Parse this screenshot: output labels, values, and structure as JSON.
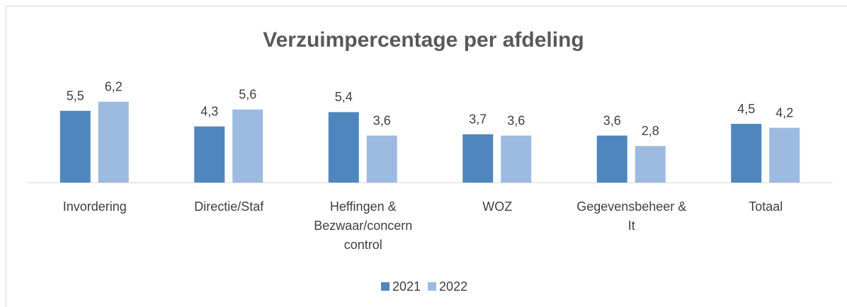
{
  "chart_data": {
    "type": "bar",
    "title": "Verzuimpercentage per afdeling",
    "categories": [
      "Invordering",
      "Directie/Staf",
      "Heffingen & Bezwaar/concern control",
      "WOZ",
      "Gegevensbeheer & It",
      "Totaal"
    ],
    "series": [
      {
        "name": "2021",
        "color": "#4f86be",
        "values": [
          5.5,
          4.3,
          5.4,
          3.7,
          3.6,
          4.5
        ],
        "value_labels": [
          "5,5",
          "4,3",
          "5,4",
          "3,7",
          "3,6",
          "4,5"
        ]
      },
      {
        "name": "2022",
        "color": "#9dbbe0",
        "values": [
          6.2,
          5.6,
          3.6,
          3.6,
          2.8,
          4.2
        ],
        "value_labels": [
          "6,2",
          "5,6",
          "3,6",
          "3,6",
          "2,8",
          "4,2"
        ]
      }
    ],
    "ylim": [
      0,
      7
    ],
    "legend": "bottom"
  }
}
